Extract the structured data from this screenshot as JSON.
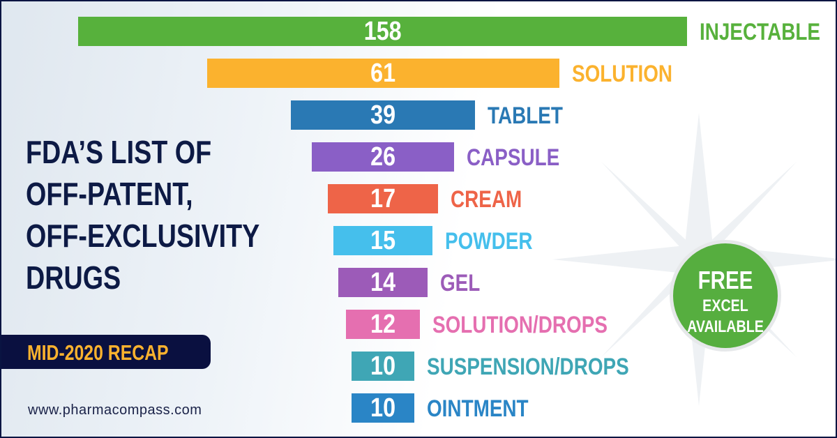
{
  "title_lines": [
    "FDA’S LIST OF",
    "OFF-PATENT,",
    "OFF-EXCLUSIVITY",
    "DRUGS"
  ],
  "recap_label": "MID-2020 RECAP",
  "website": "www.pharmacompass.com",
  "badge": {
    "line1": "FREE",
    "line2": "EXCEL",
    "line3": "AVAILABLE",
    "color": "#56ae3f"
  },
  "chart_data": {
    "type": "bar",
    "orientation": "horizontal-funnel",
    "categories": [
      "INJECTABLE",
      "SOLUTION",
      "TABLET",
      "CAPSULE",
      "CREAM",
      "POWDER",
      "GEL",
      "SOLUTION/DROPS",
      "SUSPENSION/DROPS",
      "OINTMENT"
    ],
    "values": [
      158,
      61,
      39,
      26,
      17,
      15,
      14,
      12,
      10,
      10
    ],
    "colors": [
      "#57b13c",
      "#fbb22e",
      "#2a79b4",
      "#8a5fc6",
      "#ee6448",
      "#45bfec",
      "#9c5bb8",
      "#e56fb0",
      "#3fa6b5",
      "#2a85c6"
    ],
    "title": "",
    "xlabel": "",
    "ylabel": ""
  }
}
